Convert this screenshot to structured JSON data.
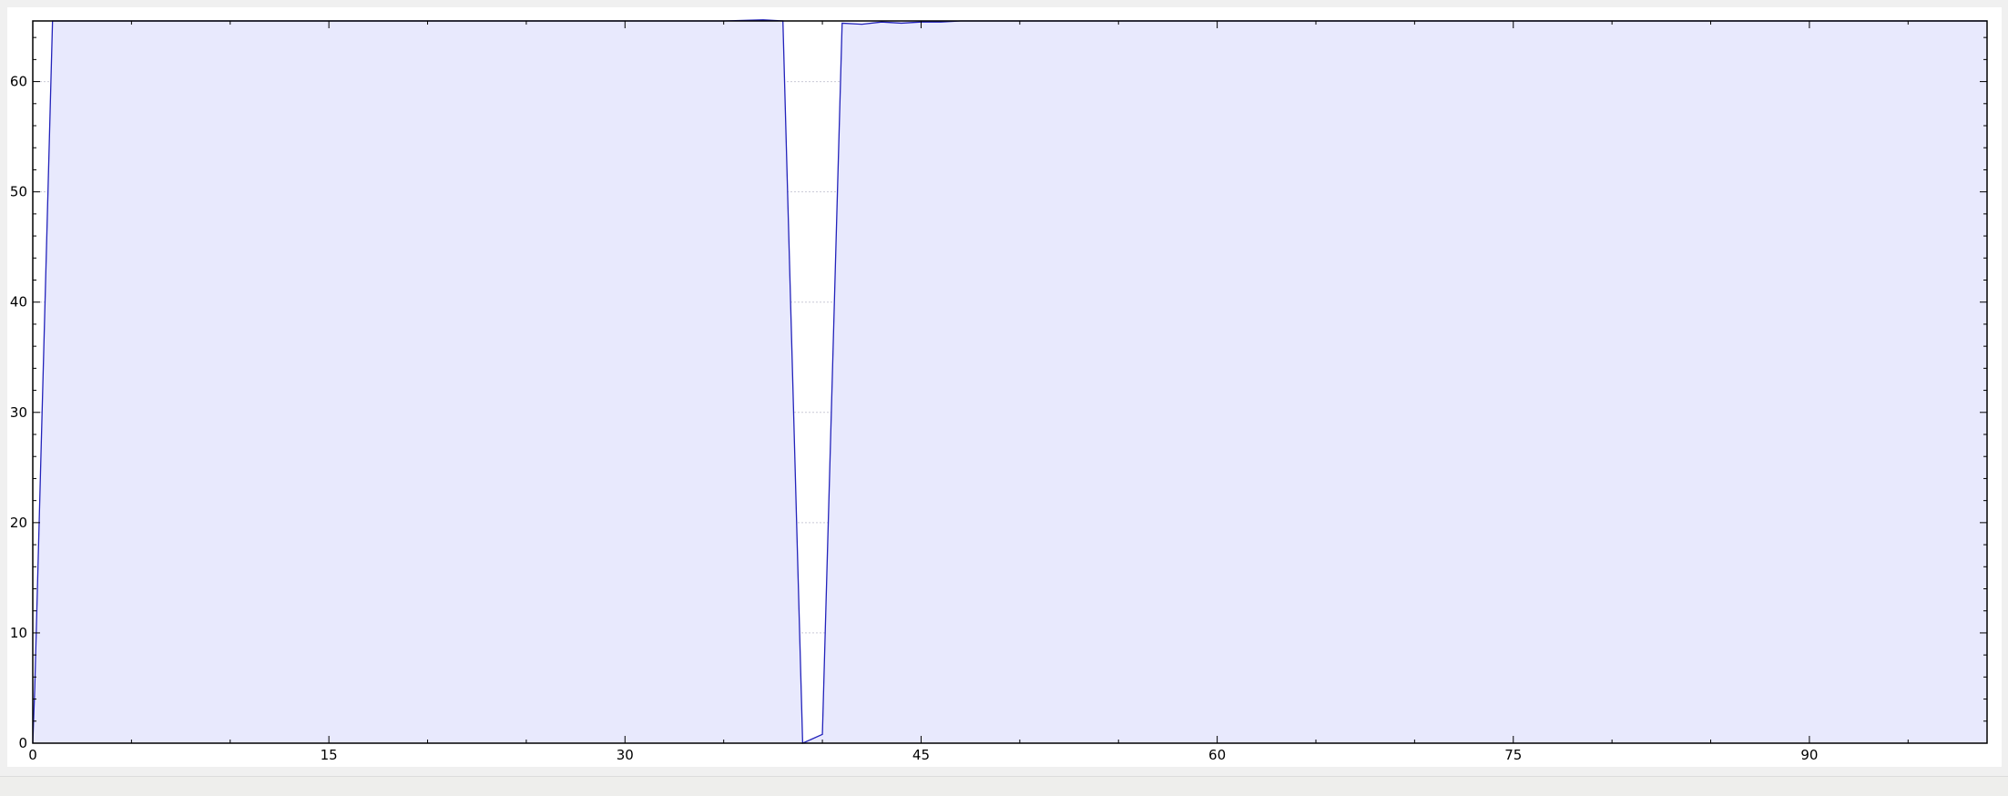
{
  "colors": {
    "line": "#2222bb",
    "fill": "#e8e9fd",
    "grid": "#c9c9d6",
    "axis": "#000000"
  },
  "chart_data": {
    "type": "area",
    "title": "",
    "xlabel": "",
    "ylabel": "",
    "xlim": [
      0,
      99
    ],
    "ylim": [
      0,
      65.5
    ],
    "grid": true,
    "x_ticks": [
      0,
      15,
      30,
      45,
      60,
      75,
      90
    ],
    "y_ticks": [
      0,
      10,
      20,
      30,
      40,
      50,
      60
    ],
    "x_minor_step": 5,
    "y_minor_step": 2,
    "series": [
      {
        "points": [
          [
            0,
            0
          ],
          [
            0.1,
            5
          ],
          [
            1,
            65.5
          ],
          [
            2,
            65.5
          ],
          [
            5,
            65.5
          ],
          [
            10,
            65.5
          ],
          [
            15,
            65.5
          ],
          [
            20,
            65.5
          ],
          [
            25,
            65.5
          ],
          [
            30,
            65.5
          ],
          [
            35,
            65.5
          ],
          [
            37,
            65.6
          ],
          [
            38,
            65.5
          ],
          [
            39,
            0
          ],
          [
            40,
            0.8
          ],
          [
            41,
            65.3
          ],
          [
            42,
            65.2
          ],
          [
            43,
            65.4
          ],
          [
            44,
            65.3
          ],
          [
            45,
            65.4
          ],
          [
            46,
            65.4
          ],
          [
            47,
            65.5
          ],
          [
            50,
            65.5
          ],
          [
            55,
            65.5
          ],
          [
            60,
            65.5
          ],
          [
            65,
            65.5
          ],
          [
            70,
            65.5
          ],
          [
            75,
            65.5
          ],
          [
            80,
            65.5
          ],
          [
            85,
            65.5
          ],
          [
            90,
            65.5
          ],
          [
            95,
            65.5
          ],
          [
            99,
            65.5
          ]
        ]
      }
    ]
  }
}
